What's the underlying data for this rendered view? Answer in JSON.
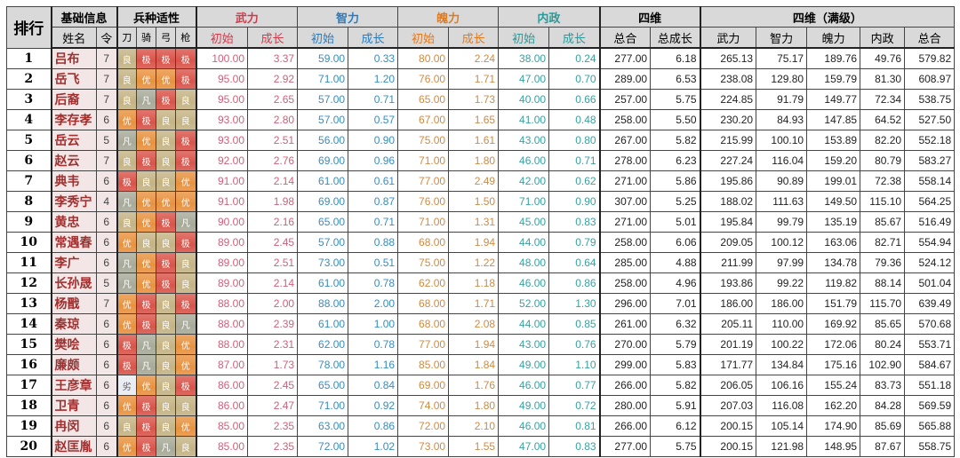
{
  "headers": {
    "rank": "排行",
    "basic": "基础信息",
    "aptitude": "兵种适性",
    "wu": "武力",
    "zhi": "智力",
    "po": "魄力",
    "nei": "内政",
    "four": "四维",
    "four_max": "四维（满级）",
    "name": "姓名",
    "ling": "令",
    "dao": "刀",
    "qi": "骑",
    "gong": "弓",
    "qiang": "枪",
    "init": "初始",
    "growth": "成长",
    "total": "总合",
    "total_growth": "总成长",
    "max_wu": "武力",
    "max_zhi": "智力",
    "max_po": "魄力",
    "max_nei": "内政",
    "max_total": "总合"
  },
  "grade_colors": {
    "极": "#d9544a",
    "优": "#e8923f",
    "良": "#c4b385",
    "凡": "#a7aa98",
    "劣": "#e8ecf2"
  },
  "rows": [
    {
      "rank": "1",
      "name": "吕布",
      "ling": "7",
      "apt": [
        "良",
        "极",
        "极",
        "极"
      ],
      "v": [
        "100.00",
        "3.37",
        "59.00",
        "0.33",
        "80.00",
        "2.24",
        "38.00",
        "0.24",
        "277.00",
        "6.18",
        "265.13",
        "75.17",
        "189.76",
        "49.76",
        "579.82"
      ]
    },
    {
      "rank": "2",
      "name": "岳飞",
      "ling": "7",
      "apt": [
        "良",
        "优",
        "优",
        "极"
      ],
      "v": [
        "95.00",
        "2.92",
        "71.00",
        "1.20",
        "76.00",
        "1.71",
        "47.00",
        "0.70",
        "289.00",
        "6.53",
        "238.08",
        "129.80",
        "159.79",
        "81.30",
        "608.97"
      ]
    },
    {
      "rank": "3",
      "name": "后裔",
      "ling": "7",
      "apt": [
        "良",
        "凡",
        "极",
        "良"
      ],
      "v": [
        "95.00",
        "2.65",
        "57.00",
        "0.71",
        "65.00",
        "1.73",
        "40.00",
        "0.66",
        "257.00",
        "5.75",
        "224.85",
        "91.79",
        "149.77",
        "72.34",
        "538.75"
      ]
    },
    {
      "rank": "4",
      "name": "李存孝",
      "ling": "6",
      "apt": [
        "优",
        "极",
        "良",
        "良"
      ],
      "v": [
        "93.00",
        "2.80",
        "57.00",
        "0.57",
        "67.00",
        "1.65",
        "41.00",
        "0.48",
        "258.00",
        "5.50",
        "230.20",
        "84.93",
        "147.85",
        "64.52",
        "527.50"
      ]
    },
    {
      "rank": "5",
      "name": "岳云",
      "ling": "5",
      "apt": [
        "凡",
        "优",
        "良",
        "极"
      ],
      "v": [
        "93.00",
        "2.51",
        "56.00",
        "0.90",
        "75.00",
        "1.61",
        "43.00",
        "0.80",
        "267.00",
        "5.82",
        "215.99",
        "100.10",
        "153.89",
        "82.20",
        "552.18"
      ]
    },
    {
      "rank": "6",
      "name": "赵云",
      "ling": "7",
      "apt": [
        "良",
        "极",
        "良",
        "极"
      ],
      "v": [
        "92.00",
        "2.76",
        "69.00",
        "0.96",
        "71.00",
        "1.80",
        "46.00",
        "0.71",
        "278.00",
        "6.23",
        "227.24",
        "116.04",
        "159.20",
        "80.79",
        "583.27"
      ]
    },
    {
      "rank": "7",
      "name": "典韦",
      "ling": "6",
      "apt": [
        "极",
        "良",
        "良",
        "优"
      ],
      "v": [
        "91.00",
        "2.14",
        "61.00",
        "0.61",
        "77.00",
        "2.49",
        "42.00",
        "0.62",
        "271.00",
        "5.86",
        "195.86",
        "90.89",
        "199.01",
        "72.38",
        "558.14"
      ]
    },
    {
      "rank": "8",
      "name": "李秀宁",
      "ling": "4",
      "apt": [
        "凡",
        "优",
        "优",
        "优"
      ],
      "v": [
        "91.00",
        "1.98",
        "69.00",
        "0.87",
        "76.00",
        "1.50",
        "71.00",
        "0.90",
        "307.00",
        "5.25",
        "188.02",
        "111.63",
        "149.50",
        "115.10",
        "564.25"
      ]
    },
    {
      "rank": "9",
      "name": "黄忠",
      "ling": "6",
      "apt": [
        "良",
        "优",
        "极",
        "凡"
      ],
      "v": [
        "90.00",
        "2.16",
        "65.00",
        "0.71",
        "71.00",
        "1.31",
        "45.00",
        "0.83",
        "271.00",
        "5.01",
        "195.84",
        "99.79",
        "135.19",
        "85.67",
        "516.49"
      ]
    },
    {
      "rank": "10",
      "name": "常遇春",
      "ling": "6",
      "apt": [
        "优",
        "良",
        "良",
        "极"
      ],
      "v": [
        "89.00",
        "2.45",
        "57.00",
        "0.88",
        "68.00",
        "1.94",
        "44.00",
        "0.79",
        "258.00",
        "6.06",
        "209.05",
        "100.12",
        "163.06",
        "82.71",
        "554.94"
      ]
    },
    {
      "rank": "11",
      "name": "李广",
      "ling": "6",
      "apt": [
        "凡",
        "优",
        "极",
        "良"
      ],
      "v": [
        "89.00",
        "2.51",
        "73.00",
        "0.51",
        "75.00",
        "1.22",
        "48.00",
        "0.64",
        "285.00",
        "4.88",
        "211.99",
        "97.99",
        "134.78",
        "79.36",
        "524.12"
      ]
    },
    {
      "rank": "12",
      "name": "长孙晟",
      "ling": "5",
      "apt": [
        "凡",
        "优",
        "极",
        "良"
      ],
      "v": [
        "89.00",
        "2.14",
        "61.00",
        "0.78",
        "62.00",
        "1.18",
        "46.00",
        "0.86",
        "258.00",
        "4.96",
        "193.86",
        "99.22",
        "119.82",
        "88.14",
        "501.04"
      ]
    },
    {
      "rank": "13",
      "name": "杨戬",
      "ling": "7",
      "apt": [
        "优",
        "极",
        "良",
        "极"
      ],
      "v": [
        "88.00",
        "2.00",
        "88.00",
        "2.00",
        "68.00",
        "1.71",
        "52.00",
        "1.30",
        "296.00",
        "7.01",
        "186.00",
        "186.00",
        "151.79",
        "115.70",
        "639.49"
      ]
    },
    {
      "rank": "14",
      "name": "秦琼",
      "ling": "6",
      "apt": [
        "优",
        "极",
        "良",
        "凡"
      ],
      "v": [
        "88.00",
        "2.39",
        "61.00",
        "1.00",
        "68.00",
        "2.08",
        "44.00",
        "0.85",
        "261.00",
        "6.32",
        "205.11",
        "110.00",
        "169.92",
        "85.65",
        "570.68"
      ]
    },
    {
      "rank": "15",
      "name": "樊哙",
      "ling": "6",
      "apt": [
        "极",
        "凡",
        "良",
        "优"
      ],
      "v": [
        "88.00",
        "2.31",
        "62.00",
        "0.78",
        "77.00",
        "1.94",
        "43.00",
        "0.76",
        "270.00",
        "5.79",
        "201.19",
        "100.22",
        "172.06",
        "80.24",
        "553.71"
      ]
    },
    {
      "rank": "16",
      "name": "廉颇",
      "ling": "6",
      "apt": [
        "极",
        "凡",
        "良",
        "优"
      ],
      "v": [
        "87.00",
        "1.73",
        "78.00",
        "1.16",
        "85.00",
        "1.84",
        "49.00",
        "1.10",
        "299.00",
        "5.83",
        "171.77",
        "134.84",
        "175.16",
        "102.90",
        "584.67"
      ]
    },
    {
      "rank": "17",
      "name": "王彦章",
      "ling": "6",
      "apt": [
        "劣",
        "优",
        "良",
        "极"
      ],
      "v": [
        "86.00",
        "2.45",
        "65.00",
        "0.84",
        "69.00",
        "1.76",
        "46.00",
        "0.77",
        "266.00",
        "5.82",
        "206.05",
        "106.16",
        "155.24",
        "83.73",
        "551.18"
      ]
    },
    {
      "rank": "18",
      "name": "卫青",
      "ling": "6",
      "apt": [
        "优",
        "极",
        "良",
        "良"
      ],
      "v": [
        "86.00",
        "2.47",
        "71.00",
        "0.92",
        "74.00",
        "1.80",
        "49.00",
        "0.72",
        "280.00",
        "5.91",
        "207.03",
        "116.08",
        "162.20",
        "84.28",
        "569.59"
      ]
    },
    {
      "rank": "19",
      "name": "冉闵",
      "ling": "6",
      "apt": [
        "良",
        "极",
        "良",
        "优"
      ],
      "v": [
        "85.00",
        "2.35",
        "63.00",
        "0.86",
        "72.00",
        "2.10",
        "46.00",
        "0.81",
        "266.00",
        "6.12",
        "200.15",
        "105.14",
        "174.90",
        "85.69",
        "565.88"
      ]
    },
    {
      "rank": "20",
      "name": "赵匡胤",
      "ling": "6",
      "apt": [
        "优",
        "极",
        "凡",
        "良"
      ],
      "v": [
        "85.00",
        "2.35",
        "72.00",
        "1.02",
        "73.00",
        "1.55",
        "47.00",
        "0.83",
        "277.00",
        "5.75",
        "200.15",
        "121.98",
        "148.95",
        "87.67",
        "558.75"
      ]
    }
  ]
}
